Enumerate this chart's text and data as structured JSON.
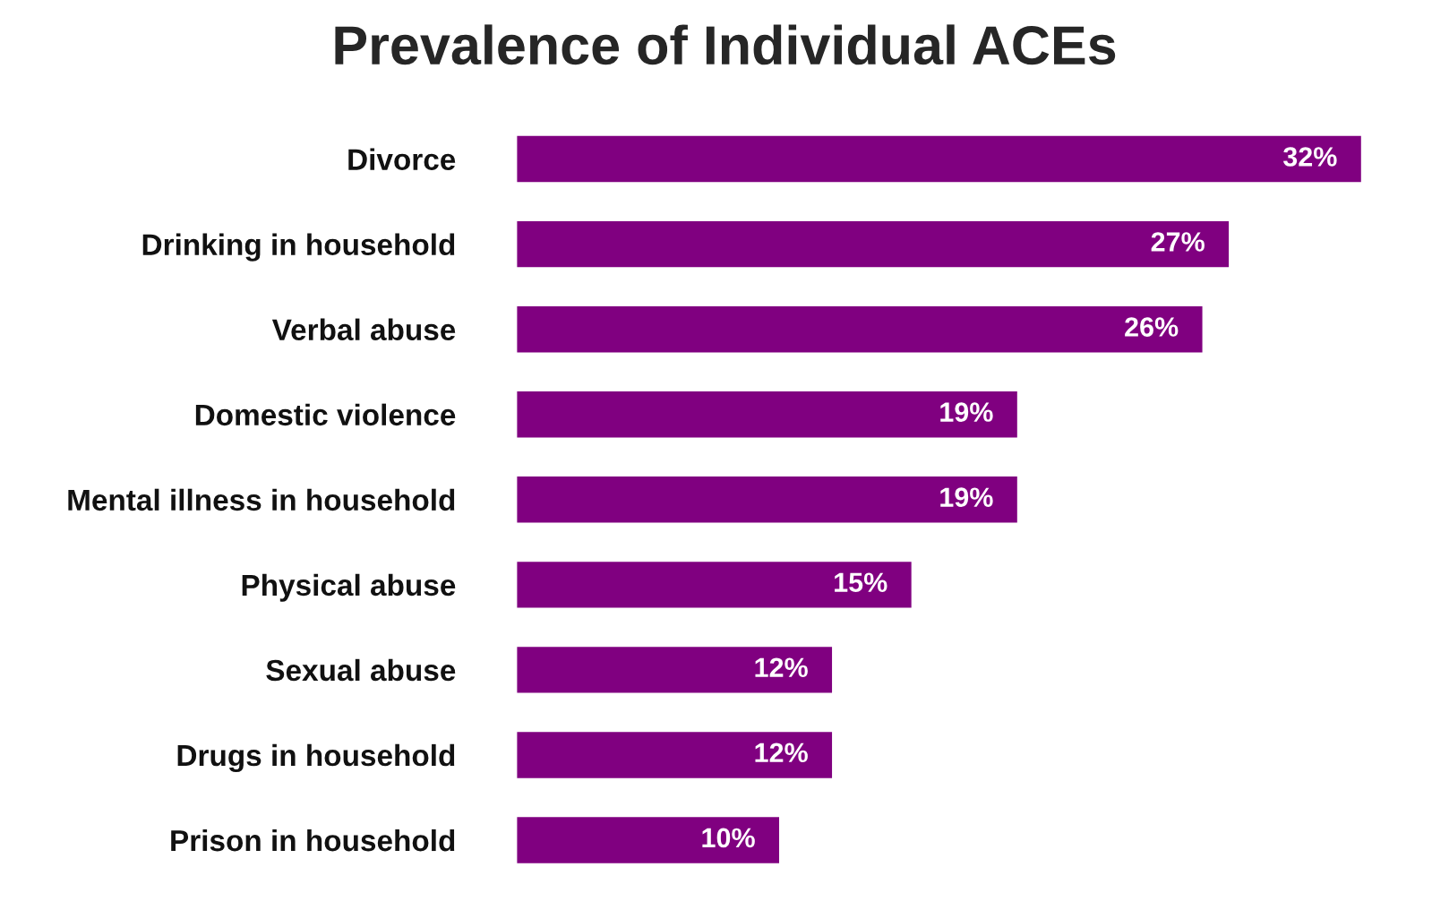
{
  "chart_data": {
    "type": "bar",
    "orientation": "horizontal",
    "title": "Prevalence of Individual ACEs",
    "categories": [
      "Divorce",
      "Drinking in household",
      "Verbal abuse",
      "Domestic violence",
      "Mental illness in household",
      "Physical abuse",
      "Sexual abuse",
      "Drugs in household",
      "Prison in household"
    ],
    "values": [
      32,
      27,
      26,
      19,
      19,
      15,
      12,
      12,
      10
    ],
    "value_labels": [
      "32%",
      "27%",
      "26%",
      "19%",
      "19%",
      "15%",
      "12%",
      "12%",
      "10%"
    ],
    "color": "#800080",
    "tick_labels": "y",
    "grid": false,
    "legend": false
  }
}
